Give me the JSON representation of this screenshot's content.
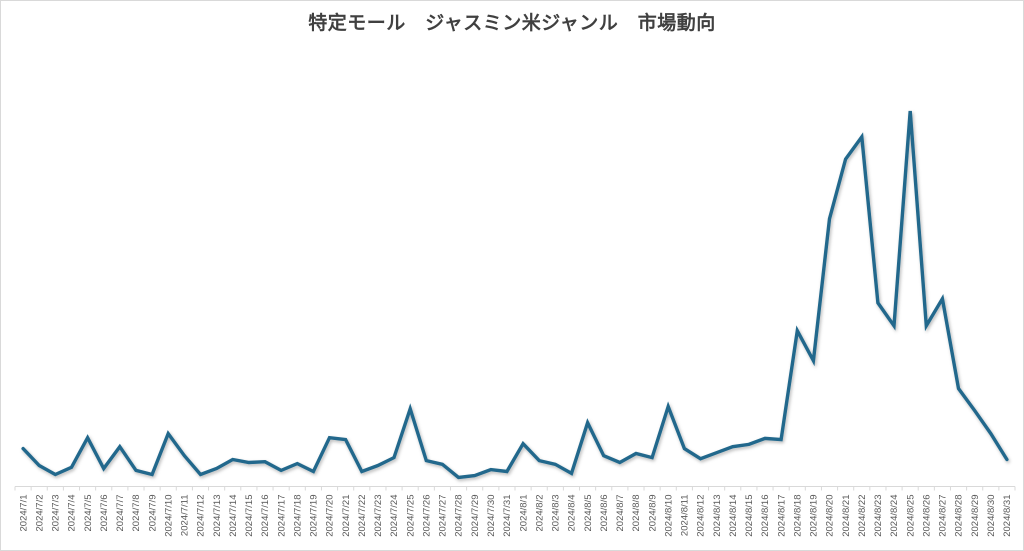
{
  "header": {
    "title": "特定モール　ジャスミン米ジャンル　市場動向"
  },
  "colors": {
    "line": "#21688C",
    "axis_line": "#d9d9d9",
    "tick": "#d9d9d9",
    "frame_border": "#d9d9d9",
    "title_text": "#404040",
    "axis_label_text": "#595959",
    "background": "#ffffff"
  },
  "chart_data": {
    "type": "line",
    "title": "特定モール　ジャスミン米ジャンル　市場動向",
    "xlabel": "",
    "ylabel": "",
    "legend": "none",
    "grid": false,
    "y_axis": "hidden",
    "ylim": [
      0,
      105
    ],
    "x_tick_label_rotation": -90,
    "x": [
      "2024/7/1",
      "2024/7/2",
      "2024/7/3",
      "2024/7/4",
      "2024/7/5",
      "2024/7/6",
      "2024/7/7",
      "2024/7/8",
      "2024/7/9",
      "2024/7/10",
      "2024/7/11",
      "2024/7/12",
      "2024/7/13",
      "2024/7/14",
      "2024/7/15",
      "2024/7/16",
      "2024/7/17",
      "2024/7/18",
      "2024/7/19",
      "2024/7/20",
      "2024/7/21",
      "2024/7/22",
      "2024/7/23",
      "2024/7/24",
      "2024/7/25",
      "2024/7/26",
      "2024/7/27",
      "2024/7/28",
      "2024/7/29",
      "2024/7/30",
      "2024/7/31",
      "2024/8/1",
      "2024/8/2",
      "2024/8/3",
      "2024/8/4",
      "2024/8/5",
      "2024/8/6",
      "2024/8/7",
      "2024/8/8",
      "2024/8/9",
      "2024/8/10",
      "2024/8/11",
      "2024/8/12",
      "2024/8/13",
      "2024/8/14",
      "2024/8/15",
      "2024/8/16",
      "2024/8/17",
      "2024/8/18",
      "2024/8/19",
      "2024/8/20",
      "2024/8/21",
      "2024/8/22",
      "2024/8/23",
      "2024/8/24",
      "2024/8/25",
      "2024/8/26",
      "2024/8/27",
      "2024/8/28",
      "2024/8/29",
      "2024/8/30",
      "2024/8/31"
    ],
    "values": [
      10.1,
      5.6,
      3.2,
      5.1,
      13.0,
      4.8,
      10.6,
      4.3,
      3.2,
      14.1,
      8.2,
      3.2,
      4.8,
      7.2,
      6.4,
      6.6,
      4.3,
      6.1,
      4.0,
      13.0,
      12.5,
      4.0,
      5.6,
      7.7,
      20.7,
      6.9,
      5.9,
      2.4,
      2.9,
      4.5,
      4.0,
      11.4,
      6.9,
      5.9,
      3.5,
      17.0,
      8.2,
      6.4,
      8.8,
      7.7,
      21.3,
      10.1,
      7.4,
      9.0,
      10.6,
      11.2,
      12.8,
      12.5,
      41.5,
      33.5,
      71.3,
      87.2,
      93.1,
      48.9,
      42.8,
      100.0,
      42.8,
      50.0,
      26.1,
      20.2,
      14.1,
      7.2
    ]
  }
}
